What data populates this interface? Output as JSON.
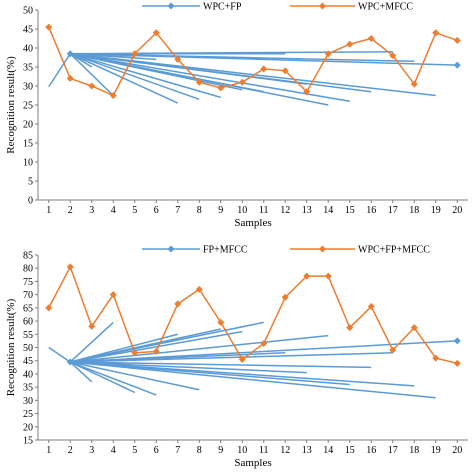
{
  "chart_data": [
    {
      "type": "line",
      "xlabel": "Samples",
      "ylabel": "Recognition result(%)",
      "x": [
        1,
        2,
        3,
        4,
        5,
        6,
        7,
        8,
        9,
        10,
        11,
        12,
        13,
        14,
        15,
        16,
        17,
        18,
        19,
        20
      ],
      "ylim": [
        0,
        50
      ],
      "yticks": [
        0,
        5,
        10,
        15,
        20,
        25,
        30,
        35,
        40,
        45,
        50
      ],
      "xticks": [
        1,
        2,
        3,
        4,
        5,
        6,
        7,
        8,
        9,
        10,
        11,
        12,
        13,
        14,
        15,
        16,
        17,
        18,
        19,
        20
      ],
      "legend_position": "top",
      "series": [
        {
          "name": "WPC+FP",
          "color": "#5b9bd5",
          "marker": "diamond",
          "style": "hub",
          "hub_x": 2,
          "hub_value": 38.5,
          "values": [
            29.8,
            38.5,
            35.0,
            27.5,
            37.5,
            37.0,
            25.5,
            26.5,
            27.0,
            29.0,
            28.5,
            38.5,
            30.5,
            25.0,
            26.0,
            28.5,
            39.0,
            36.5,
            27.5,
            35.5
          ]
        },
        {
          "name": "WPC+MFCC",
          "color": "#ed7d31",
          "marker": "diamond",
          "style": "line",
          "values": [
            45.5,
            32.0,
            30.0,
            27.5,
            38.5,
            44.0,
            37.0,
            31.0,
            29.5,
            31.0,
            34.5,
            34.0,
            28.5,
            38.5,
            41.0,
            42.5,
            38.0,
            30.5,
            44.0,
            42.0
          ]
        }
      ]
    },
    {
      "type": "line",
      "xlabel": "Samples",
      "ylabel": "Recognition result(%)",
      "x": [
        1,
        2,
        3,
        4,
        5,
        6,
        7,
        8,
        9,
        10,
        11,
        12,
        13,
        14,
        15,
        16,
        17,
        18,
        19,
        20
      ],
      "ylim": [
        15,
        85
      ],
      "yticks": [
        15,
        20,
        25,
        30,
        35,
        40,
        45,
        50,
        55,
        60,
        65,
        70,
        75,
        80,
        85
      ],
      "xticks": [
        1,
        2,
        3,
        4,
        5,
        6,
        7,
        8,
        9,
        10,
        11,
        12,
        13,
        14,
        15,
        16,
        17,
        18,
        19,
        20
      ],
      "legend_position": "top",
      "series": [
        {
          "name": "FP+MFCC",
          "color": "#5b9bd5",
          "marker": "diamond",
          "style": "hub",
          "hub_x": 2,
          "hub_value": 44.5,
          "values": [
            50.0,
            44.5,
            37.0,
            59.5,
            33.0,
            32.0,
            55.0,
            34.0,
            57.0,
            56.0,
            59.5,
            48.0,
            40.5,
            54.5,
            36.0,
            42.5,
            48.0,
            35.5,
            31.0,
            52.5
          ]
        },
        {
          "name": "WPC+FP+MFCC",
          "color": "#ed7d31",
          "marker": "diamond",
          "style": "line",
          "values": [
            65.0,
            80.5,
            58.0,
            70.0,
            48.0,
            48.5,
            66.5,
            72.0,
            59.5,
            45.5,
            51.5,
            69.0,
            77.0,
            77.0,
            57.5,
            65.5,
            49.0,
            57.5,
            46.0,
            44.0
          ]
        }
      ]
    }
  ]
}
